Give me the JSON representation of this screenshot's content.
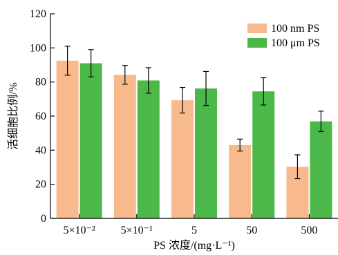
{
  "chart_data": {
    "type": "bar",
    "title": "",
    "xlabel": "PS 浓度/(mg·L⁻¹)",
    "ylabel": "活细胞比例/%",
    "categories": [
      "5×10⁻²",
      "5×10⁻¹",
      "5",
      "50",
      "500"
    ],
    "ylim": [
      0,
      120
    ],
    "yticks": [
      0,
      20,
      40,
      60,
      80,
      100,
      120
    ],
    "grid": false,
    "legend_position": "top-right",
    "series": [
      {
        "name": "100 nm PS",
        "color": "#F8B98C",
        "values": [
          92.5,
          84.2,
          69.3,
          43.0,
          30.3
        ],
        "errors": [
          8.5,
          5.5,
          7.5,
          3.5,
          7.0
        ]
      },
      {
        "name": "100 μm PS",
        "color": "#4CB84A",
        "values": [
          91.0,
          80.9,
          76.2,
          74.5,
          56.9
        ],
        "errors": [
          8.0,
          7.5,
          10.0,
          8.0,
          6.0
        ]
      }
    ]
  }
}
